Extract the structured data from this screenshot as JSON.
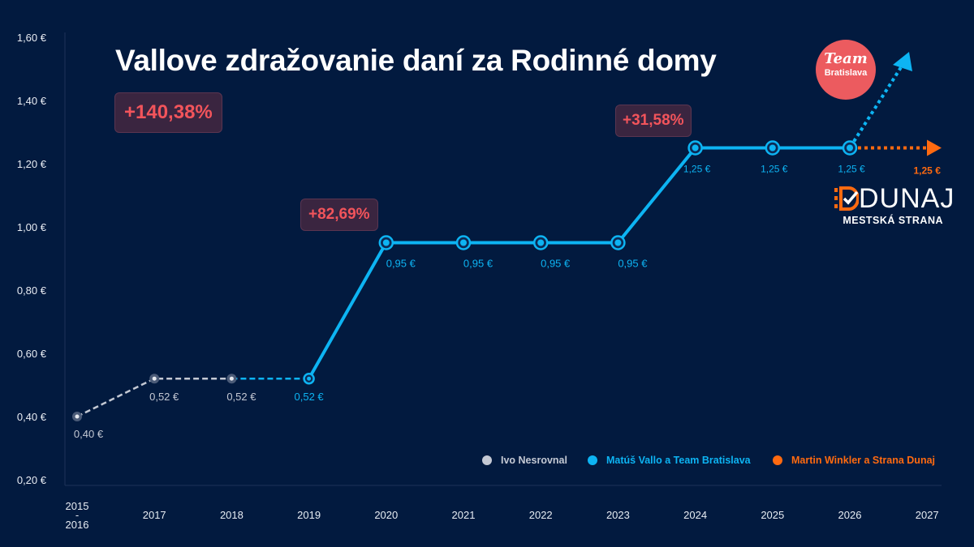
{
  "chart_data": {
    "type": "line",
    "title": "Vallove zdražovanie daní za Rodinné domy",
    "xlabel": "",
    "ylabel": "",
    "ylim": [
      0.2,
      1.6
    ],
    "grid": false,
    "y_ticks": [
      "0,20 €",
      "0,40 €",
      "0,60 €",
      "0,80 €",
      "1,00 €",
      "1,20 €",
      "1,40 €",
      "1,60 €"
    ],
    "y_tick_values": [
      0.2,
      0.4,
      0.6,
      0.8,
      1.0,
      1.2,
      1.4,
      1.6
    ],
    "categories": [
      "2015\n-\n2016",
      "2017",
      "2018",
      "2019",
      "2020",
      "2021",
      "2022",
      "2023",
      "2024",
      "2025",
      "2026",
      "2027"
    ],
    "series": [
      {
        "name": "Ivo Nesrovnal",
        "color": "#c4c9d4",
        "points": [
          [
            0,
            0.4,
            "0,40 €"
          ],
          [
            1,
            0.52,
            "0,52 €"
          ],
          [
            2,
            0.52,
            "0,52 €"
          ]
        ],
        "style": "dashed"
      },
      {
        "name": "Matúš Vallo a Team Bratislava",
        "color": "#0db4f3",
        "points": [
          [
            2,
            0.52,
            null
          ],
          [
            3,
            0.52,
            "0,52 €"
          ],
          [
            4,
            0.95,
            "0,95 €"
          ],
          [
            5,
            0.95,
            "0,95 €"
          ],
          [
            6,
            0.95,
            "0,95 €"
          ],
          [
            7,
            0.95,
            "0,95 €"
          ],
          [
            8,
            1.25,
            "1,25 €"
          ],
          [
            9,
            1.25,
            "1,25 €"
          ],
          [
            10,
            1.25,
            "1,25 €"
          ]
        ],
        "style": "solid"
      },
      {
        "name": "Martin Winkler a Strana Dunaj",
        "color": "#ff6a10",
        "points": [
          [
            10,
            1.25,
            null
          ],
          [
            11,
            1.25,
            "1,25 €"
          ]
        ],
        "style": "dotted"
      }
    ],
    "annotations": [
      {
        "text": "+140,38%"
      },
      {
        "text": "+82,69%"
      },
      {
        "text": "+31,58%"
      }
    ],
    "legend": {
      "placement": "bottom-right"
    }
  },
  "logos": {
    "team_bratislava": [
      "Team",
      "Bratislava"
    ],
    "dunaj": [
      "DUNAJ",
      "MESTSKÁ STRANA"
    ]
  }
}
